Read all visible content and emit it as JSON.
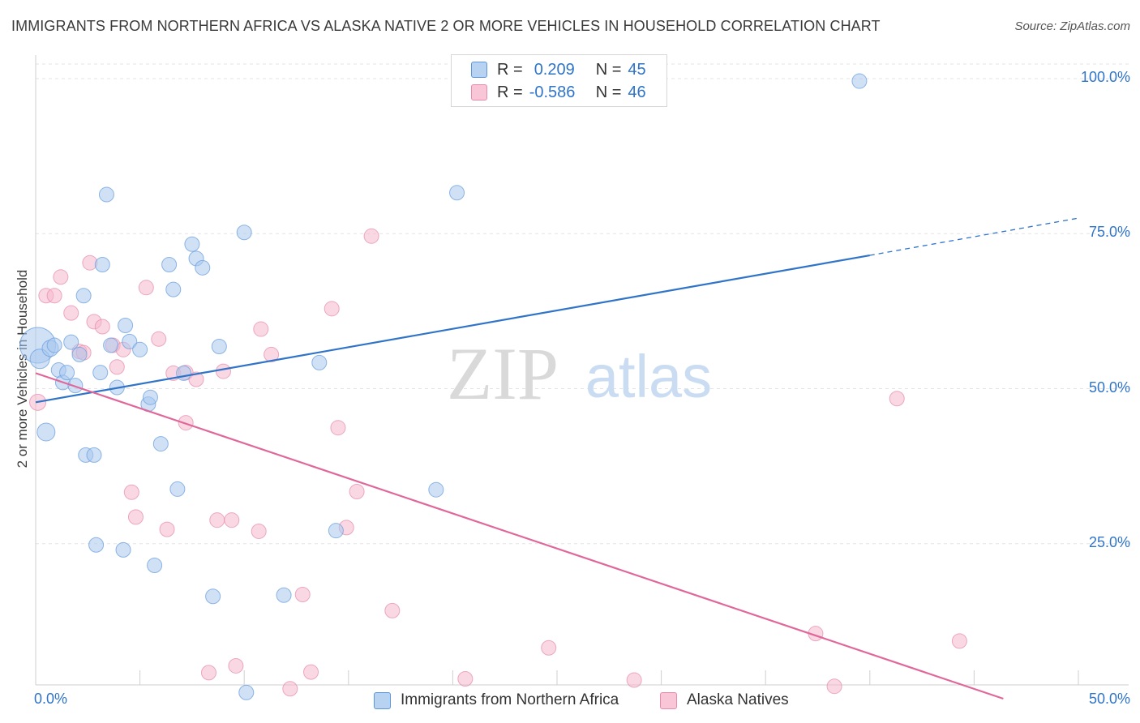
{
  "title": "IMMIGRANTS FROM NORTHERN AFRICA VS ALASKA NATIVE 2 OR MORE VEHICLES IN HOUSEHOLD CORRELATION CHART",
  "source": "Source: ZipAtlas.com",
  "watermark": {
    "zip": "ZIP",
    "atlas": "atlas"
  },
  "legend": {
    "series1": {
      "r_label": "R =",
      "r_value": "0.209",
      "n_label": "N =",
      "n_value": "45"
    },
    "series2": {
      "r_label": "R =",
      "r_value": "-0.586",
      "n_label": "N =",
      "n_value": "46"
    }
  },
  "chart_data": {
    "type": "scatter",
    "title": "IMMIGRANTS FROM NORTHERN AFRICA VS ALASKA NATIVE 2 OR MORE VEHICLES IN HOUSEHOLD CORRELATION CHART",
    "xlabel": "",
    "ylabel": "2 or more Vehicles in Household",
    "xlim": [
      0,
      50
    ],
    "ylim": [
      0,
      100
    ],
    "x_tick_labels": [
      "0.0%",
      "50.0%"
    ],
    "y_tick_labels": [
      "100.0%",
      "75.0%",
      "50.0%",
      "25.0%"
    ],
    "y_ticks": [
      100,
      75,
      50,
      25
    ],
    "grid": true,
    "legend_position": "top-center",
    "colors": {
      "series1": "#2f74c8",
      "series2": "#e0679a",
      "series1_fill": "#a9c9ee",
      "series2_fill": "#f5b8cc"
    },
    "series": [
      {
        "name": "Immigrants from Northern Africa",
        "color": "#2f74c8",
        "points": [
          [
            0.1,
            57.0,
            22
          ],
          [
            0.2,
            54.8,
            12
          ],
          [
            0.5,
            43.0,
            11
          ],
          [
            0.7,
            56.5,
            10
          ],
          [
            0.9,
            57.0,
            9
          ],
          [
            1.1,
            53.0,
            9
          ],
          [
            1.3,
            51.0,
            9
          ],
          [
            1.5,
            52.6,
            9
          ],
          [
            1.7,
            57.5,
            9
          ],
          [
            1.9,
            50.5,
            9
          ],
          [
            2.1,
            55.5,
            9
          ],
          [
            2.3,
            65.0,
            9
          ],
          [
            2.4,
            39.3,
            9
          ],
          [
            2.8,
            39.3,
            9
          ],
          [
            3.1,
            52.6,
            9
          ],
          [
            3.2,
            70.0,
            9
          ],
          [
            3.4,
            81.3,
            9
          ],
          [
            3.6,
            57.0,
            9
          ],
          [
            3.9,
            50.2,
            9
          ],
          [
            4.3,
            60.2,
            9
          ],
          [
            4.5,
            57.6,
            9
          ],
          [
            5.0,
            56.3,
            9
          ],
          [
            5.4,
            47.5,
            9
          ],
          [
            5.5,
            48.6,
            9
          ],
          [
            5.7,
            21.5,
            9
          ],
          [
            6.0,
            41.1,
            9
          ],
          [
            6.4,
            70.0,
            9
          ],
          [
            6.6,
            66.0,
            9
          ],
          [
            6.8,
            33.8,
            9
          ],
          [
            7.1,
            52.5,
            9
          ],
          [
            7.5,
            73.3,
            9
          ],
          [
            7.7,
            71.0,
            9
          ],
          [
            8.0,
            69.5,
            9
          ],
          [
            8.5,
            16.5,
            9
          ],
          [
            8.8,
            56.8,
            9
          ],
          [
            10.0,
            75.2,
            9
          ],
          [
            10.1,
            1.0,
            9
          ],
          [
            11.9,
            16.7,
            9
          ],
          [
            13.6,
            54.2,
            9
          ],
          [
            14.4,
            27.1,
            9
          ],
          [
            19.2,
            33.7,
            9
          ],
          [
            20.2,
            81.6,
            9
          ],
          [
            39.5,
            99.6,
            9
          ],
          [
            4.2,
            24.0,
            9
          ],
          [
            2.9,
            24.8,
            9
          ]
        ]
      },
      {
        "name": "Alaska Natives",
        "color": "#e0679a",
        "points": [
          [
            0.1,
            47.8,
            10
          ],
          [
            0.5,
            65.0,
            9
          ],
          [
            0.9,
            65.0,
            9
          ],
          [
            1.2,
            68.0,
            9
          ],
          [
            1.7,
            62.2,
            9
          ],
          [
            2.1,
            56.0,
            9
          ],
          [
            2.3,
            55.8,
            9
          ],
          [
            2.6,
            70.3,
            9
          ],
          [
            2.8,
            60.8,
            9
          ],
          [
            3.2,
            60.0,
            9
          ],
          [
            3.7,
            57.0,
            9
          ],
          [
            3.9,
            53.5,
            9
          ],
          [
            4.2,
            56.3,
            9
          ],
          [
            4.6,
            33.3,
            9
          ],
          [
            4.8,
            29.3,
            9
          ],
          [
            5.3,
            66.3,
            9
          ],
          [
            5.9,
            58.0,
            9
          ],
          [
            6.3,
            27.3,
            9
          ],
          [
            6.6,
            52.5,
            9
          ],
          [
            7.2,
            52.6,
            9
          ],
          [
            7.2,
            44.5,
            9
          ],
          [
            7.7,
            51.5,
            9
          ],
          [
            8.3,
            4.2,
            9
          ],
          [
            8.7,
            28.8,
            9
          ],
          [
            9.0,
            52.8,
            9
          ],
          [
            9.4,
            28.8,
            9
          ],
          [
            9.6,
            5.3,
            9
          ],
          [
            10.7,
            27.0,
            9
          ],
          [
            10.8,
            59.6,
            9
          ],
          [
            11.3,
            55.5,
            9
          ],
          [
            12.2,
            1.6,
            9
          ],
          [
            12.8,
            16.8,
            9
          ],
          [
            13.2,
            4.3,
            9
          ],
          [
            14.2,
            62.9,
            9
          ],
          [
            14.5,
            43.7,
            9
          ],
          [
            14.9,
            27.6,
            9
          ],
          [
            15.4,
            33.4,
            9
          ],
          [
            16.1,
            74.6,
            9
          ],
          [
            17.1,
            14.2,
            9
          ],
          [
            20.6,
            3.2,
            9
          ],
          [
            24.6,
            8.2,
            9
          ],
          [
            28.7,
            3.0,
            9
          ],
          [
            37.4,
            10.5,
            9
          ],
          [
            38.3,
            2.0,
            9
          ],
          [
            41.3,
            48.4,
            9
          ],
          [
            44.3,
            9.3,
            9
          ]
        ]
      }
    ],
    "trend_lines": [
      {
        "series": "Immigrants from Northern Africa",
        "x_start": 0,
        "y_start": 47.8,
        "x_end": 40,
        "y_end": 71.5,
        "dashed_to_x": 50,
        "dashed_to_y": 77.5
      },
      {
        "series": "Alaska Natives",
        "x_start": 0,
        "y_start": 52.5,
        "x_end": 46.4,
        "y_end": 0
      }
    ]
  },
  "bottom_legend": {
    "series1_label": "Immigrants from Northern Africa",
    "series2_label": "Alaska Natives"
  }
}
